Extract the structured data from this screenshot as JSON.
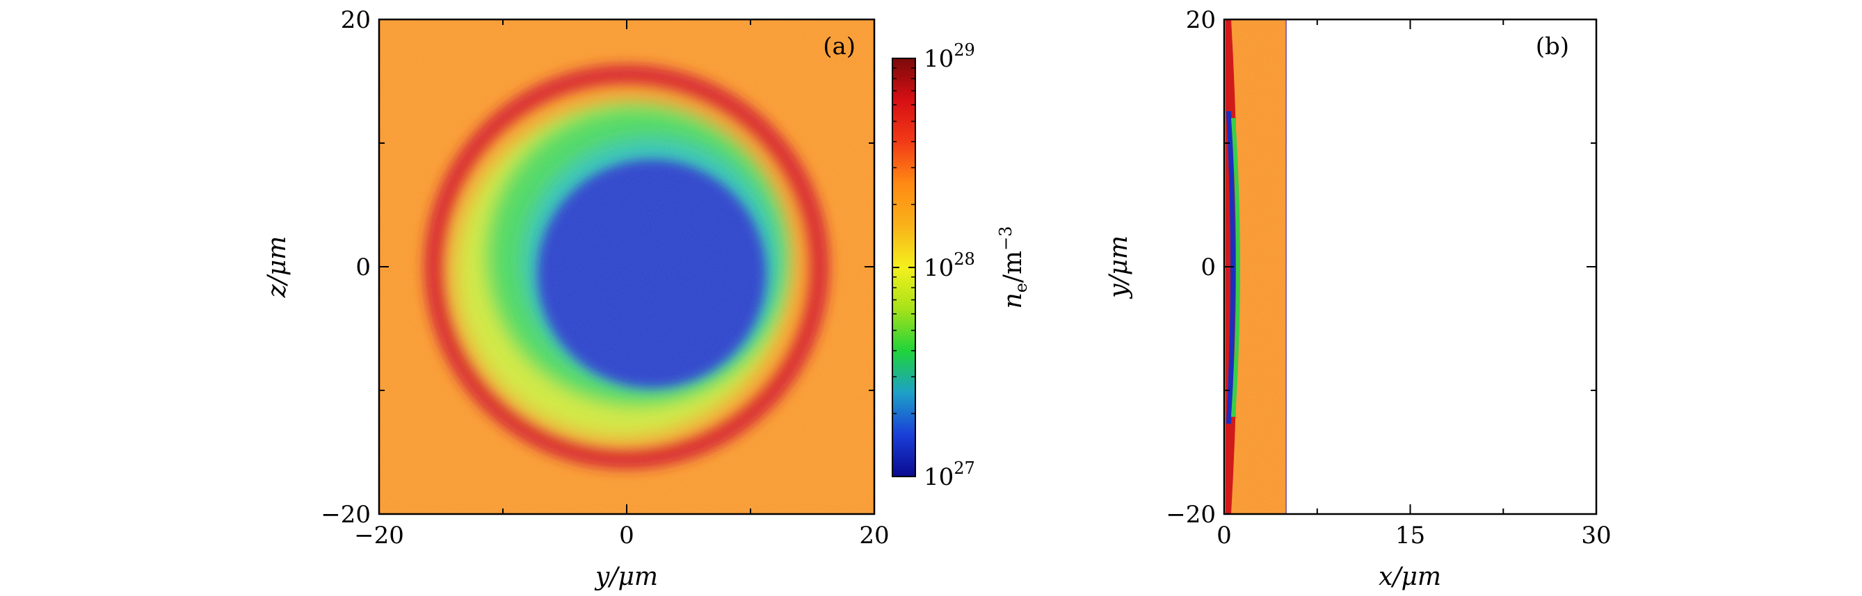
{
  "chart_data": [
    {
      "type": "heatmap",
      "panel_label": "(a)",
      "xlabel": "y/μm",
      "ylabel": "z/μm",
      "xlim": [
        -20,
        20
      ],
      "ylim": [
        -20,
        20
      ],
      "x_ticks": [
        -20,
        0,
        20
      ],
      "y_ticks": [
        -20,
        0,
        20
      ],
      "x_tick_labels": [
        "−20",
        "0",
        "20"
      ],
      "y_tick_labels": [
        "−20",
        "0",
        "20"
      ],
      "colorbar": {
        "label": "n_e/m^-3",
        "label_main": "n",
        "label_sub": "e",
        "label_unit": "/m",
        "label_sup": "−3",
        "scale": "log",
        "range": [
          1e+27,
          1e+29
        ],
        "ticks": [
          1e+27,
          1e+28,
          1e+29
        ],
        "tick_base": "10",
        "tick_exponents": [
          "27",
          "28",
          "29"
        ],
        "colormap": [
          "#0a0a90",
          "#1a3fd8",
          "#1ea0c8",
          "#1fd33a",
          "#a6e21a",
          "#f4f01c",
          "#f9b21a",
          "#ff8a14",
          "#f23b16",
          "#d70f14",
          "#7a0a0a"
        ]
      },
      "structures": [
        {
          "name": "background",
          "density": 1.2e+28,
          "color": "#f7861f"
        },
        {
          "name": "outer dense ring",
          "center": [
            0,
            0
          ],
          "inner_radius": 14.5,
          "outer_radius": 16,
          "density": 5e+28,
          "color": "#d11a1a"
        },
        {
          "name": "inner disc (yellow-green to green)",
          "center": [
            0,
            0
          ],
          "radius": 14.5,
          "density": 3e+27,
          "color": "#47d43c"
        },
        {
          "name": "central depleted region",
          "center": [
            2,
            -0.5
          ],
          "radius": 9.5,
          "density": 1.2e+27,
          "color": "#1a2fbf"
        }
      ]
    },
    {
      "type": "heatmap",
      "panel_label": "(b)",
      "xlabel": "x/μm",
      "ylabel": "y/μm",
      "xlim": [
        0,
        30
      ],
      "ylim": [
        -20,
        20
      ],
      "x_ticks": [
        0,
        15,
        30
      ],
      "y_ticks": [
        -20,
        0,
        20
      ],
      "x_tick_labels": [
        "0",
        "15",
        "30"
      ],
      "y_tick_labels": [
        "−20",
        "0",
        "20"
      ],
      "structures": [
        {
          "name": "plasma slab",
          "x_range": [
            0,
            5
          ],
          "y_range": [
            -20,
            20
          ],
          "density": 1.2e+28,
          "color": "#f7861f"
        },
        {
          "name": "compressed front layer",
          "x_range": [
            0,
            1.5
          ],
          "y_range": [
            -20,
            20
          ],
          "color": "#d11a1a"
        },
        {
          "name": "empty region",
          "x_range": [
            5,
            30
          ],
          "y_range": [
            -20,
            20
          ],
          "color": "#ffffff"
        }
      ]
    }
  ]
}
